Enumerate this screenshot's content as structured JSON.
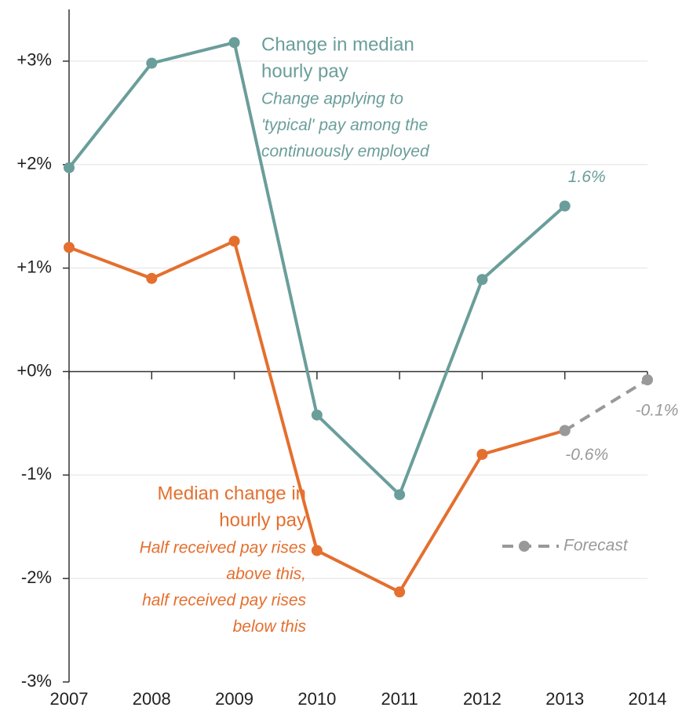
{
  "chart_data": {
    "type": "line",
    "x": [
      2007,
      2008,
      2009,
      2010,
      2011,
      2012,
      2013
    ],
    "xlim": [
      2007,
      2014
    ],
    "xticks": [
      2007,
      2008,
      2009,
      2010,
      2011,
      2012,
      2013,
      2014
    ],
    "ylim": [
      -3,
      3.5
    ],
    "yticks": [
      {
        "value": 3,
        "label": "+3%"
      },
      {
        "value": 2,
        "label": "+2%"
      },
      {
        "value": 1,
        "label": "+1%"
      },
      {
        "value": 0,
        "label": "+0%"
      },
      {
        "value": -1,
        "label": "-1%"
      },
      {
        "value": -2,
        "label": "-2%"
      },
      {
        "value": -3,
        "label": "-3%"
      }
    ],
    "grid": true,
    "series": [
      {
        "name": "Change in median hourly pay",
        "color": "#6a9e9a",
        "values": [
          1.97,
          2.98,
          3.18,
          -0.42,
          -1.19,
          0.89,
          1.6
        ],
        "value_labels": [
          null,
          null,
          null,
          null,
          null,
          null,
          "1.6%"
        ]
      },
      {
        "name": "Median change in hourly pay",
        "color": "#e46f2e",
        "values": [
          1.2,
          0.9,
          1.26,
          -1.73,
          -2.13,
          -0.8,
          -0.57
        ]
      },
      {
        "name": "Forecast",
        "color": "#999999",
        "dashed": true,
        "x": [
          2013,
          2014
        ],
        "values": [
          -0.57,
          -0.08
        ],
        "value_labels": [
          "-0.6%",
          "-0.1%"
        ]
      }
    ],
    "annotations": [
      {
        "series": 0,
        "lines": [
          "Change in median",
          "hourly pay"
        ],
        "note": [
          "Change applying to",
          "'typical' pay among the",
          "continuously employed"
        ]
      },
      {
        "series": 1,
        "lines": [
          "Median change in",
          "hourly pay"
        ],
        "note": [
          "Half received pay rises",
          "above this,",
          "half received pay rises",
          "below this"
        ]
      }
    ],
    "legend": "right"
  }
}
